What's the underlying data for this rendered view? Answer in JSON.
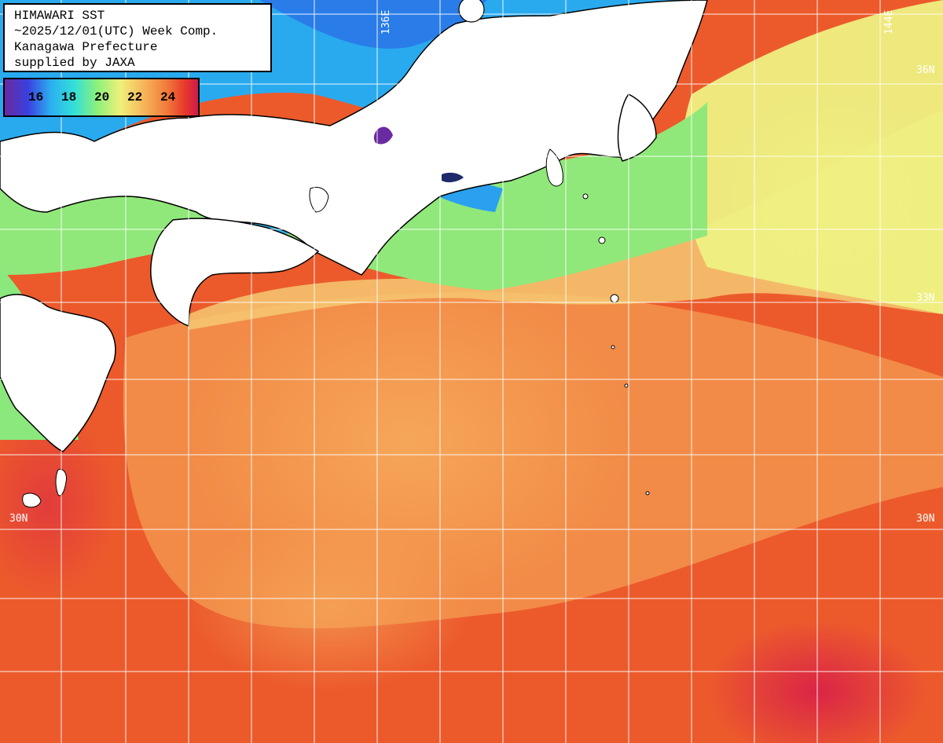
{
  "title": {
    "line1": "HIMAWARI SST",
    "line2": "~2025/12/01(UTC) Week Comp.",
    "line3": "Kanagawa Prefecture",
    "line4": "supplied by JAXA"
  },
  "legend": {
    "ticks": [
      "16",
      "18",
      "20",
      "22",
      "24"
    ],
    "colors": [
      "#6a2aa0",
      "#3a40e0",
      "#2bb0f0",
      "#33e0d8",
      "#8ef07a",
      "#f0f07a",
      "#f6b45a",
      "#f07a3a",
      "#e83a2a",
      "#d01a4a"
    ]
  },
  "grid_labels": {
    "lon_136": "136E",
    "lon_144": "144E",
    "lat_36": "36N",
    "lat_33": "33N",
    "lat_30_left": "30N",
    "lat_30_right": "30N"
  },
  "palette": {
    "land": "#ffffff",
    "cold_north": "#2aa8ee",
    "cool": "#8ee87a",
    "mild": "#f0f082",
    "warm": "#f5a05a",
    "hot": "#ec5a2c",
    "hottest": "#d81e4a",
    "gridline": "#ffffff"
  }
}
